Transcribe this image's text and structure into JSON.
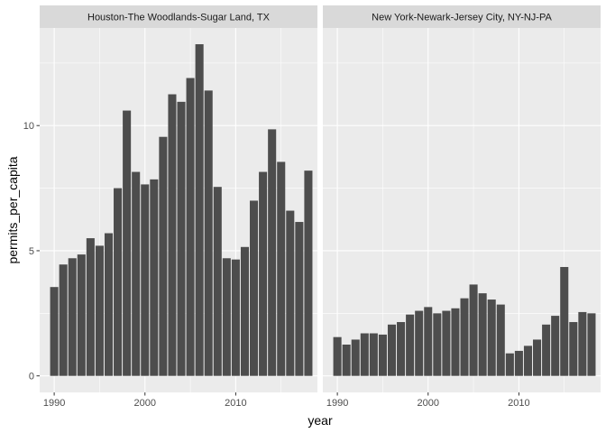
{
  "chart_data": {
    "type": "bar",
    "facet": "by metro area",
    "xlabel": "year",
    "ylabel": "permits_per_capita",
    "xlim": [
      1988.4,
      2019.0
    ],
    "ylim": [
      -0.66,
      13.9
    ],
    "x_ticks": [
      1990,
      2000,
      2010
    ],
    "y_ticks": [
      0,
      5,
      10
    ],
    "grid": true,
    "legend": "none",
    "colors": {
      "bar": "#4d4d4d",
      "panel_bg": "#ebebeb",
      "strip_bg": "#d9d9d9",
      "grid": "#ffffff"
    },
    "x": [
      1990,
      1991,
      1992,
      1993,
      1994,
      1995,
      1996,
      1997,
      1998,
      1999,
      2000,
      2001,
      2002,
      2003,
      2004,
      2005,
      2006,
      2007,
      2008,
      2009,
      2010,
      2011,
      2012,
      2013,
      2014,
      2015,
      2016,
      2017,
      2018
    ],
    "series": [
      {
        "name": "Houston-The Woodlands-Sugar Land, TX",
        "values": [
          3.55,
          4.45,
          4.7,
          4.85,
          5.5,
          5.2,
          5.7,
          7.5,
          10.6,
          8.15,
          7.65,
          7.85,
          9.55,
          11.25,
          10.95,
          11.9,
          13.25,
          11.4,
          7.55,
          4.7,
          4.65,
          5.15,
          7.0,
          8.15,
          9.85,
          8.55,
          6.6,
          6.15,
          8.2
        ]
      },
      {
        "name": "New York-Newark-Jersey City, NY-NJ-PA",
        "values": [
          1.55,
          1.25,
          1.45,
          1.7,
          1.7,
          1.65,
          2.05,
          2.15,
          2.45,
          2.6,
          2.75,
          2.5,
          2.6,
          2.7,
          3.1,
          3.65,
          3.3,
          3.05,
          2.85,
          0.9,
          1.0,
          1.2,
          1.45,
          2.05,
          2.4,
          4.35,
          2.15,
          2.55,
          2.5
        ]
      }
    ]
  }
}
